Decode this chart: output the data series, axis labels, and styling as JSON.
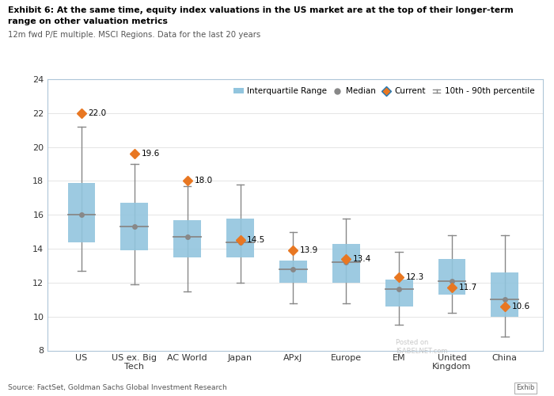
{
  "title_line1": "Exhibit 6: At the same time, equity index valuations in the US market are at the top of their longer-term",
  "title_line2": "range on other valuation metrics",
  "subtitle": "12m fwd P/E multiple. MSCI Regions. Data for the last 20 years",
  "source": "Source: FactSet, Goldman Sachs Global Investment Research",
  "categories": [
    "US",
    "US ex. Big\nTech",
    "AC World",
    "Japan",
    "APxJ",
    "Europe",
    "EM",
    "United\nKingdom",
    "China"
  ],
  "current": [
    22.0,
    19.6,
    18.0,
    14.5,
    13.9,
    13.4,
    12.3,
    11.7,
    10.6
  ],
  "median": [
    16.0,
    15.3,
    14.7,
    14.4,
    12.8,
    13.2,
    11.6,
    12.1,
    11.0
  ],
  "q1": [
    14.4,
    13.9,
    13.5,
    13.5,
    12.0,
    12.0,
    10.6,
    11.3,
    10.0
  ],
  "q3": [
    17.9,
    16.7,
    15.7,
    15.8,
    13.3,
    14.3,
    12.2,
    13.4,
    12.6
  ],
  "p10": [
    12.7,
    11.9,
    11.5,
    12.0,
    10.8,
    10.8,
    9.5,
    10.2,
    8.8
  ],
  "p90": [
    21.2,
    19.0,
    17.7,
    17.8,
    15.0,
    15.8,
    13.8,
    14.8,
    14.8
  ],
  "ylim": [
    8,
    24
  ],
  "yticks": [
    8,
    10,
    12,
    14,
    16,
    18,
    20,
    22,
    24
  ],
  "box_color": "#92c5de",
  "median_color": "#888888",
  "current_color": "#e87722",
  "whisker_color": "#888888",
  "bg_color": "#ffffff",
  "plot_bg_color": "#ffffff",
  "border_color": "#aec6d8"
}
